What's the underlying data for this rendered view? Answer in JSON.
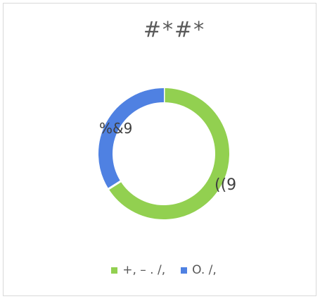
{
  "chart_data": {
    "type": "pie",
    "subtype": "doughnut",
    "title": "#*#*",
    "categories": [
      "+, – . /,",
      "O. /,"
    ],
    "values": [
      66,
      34
    ],
    "data_labels": [
      "((9",
      "%&9"
    ],
    "colors": [
      "#92d050",
      "#4f81e2"
    ],
    "legend_position": "bottom"
  }
}
